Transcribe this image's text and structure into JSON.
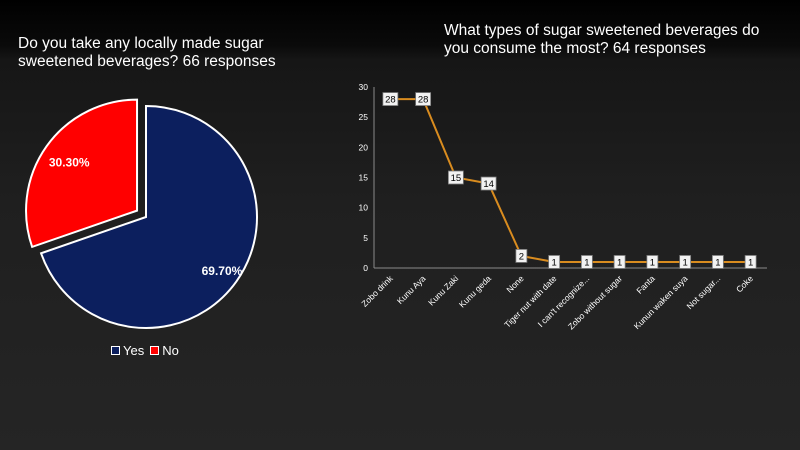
{
  "chart_data": [
    {
      "type": "pie",
      "title": "Do you take any locally made sugar sweetened beverages? 66 responses",
      "categories": [
        "Yes",
        "No"
      ],
      "values": [
        69.7,
        30.3
      ],
      "labels": [
        "69.70%",
        "30.30%"
      ],
      "colors": [
        "#0c1f5e",
        "#ff0000"
      ],
      "legend_position": "bottom"
    },
    {
      "type": "line",
      "title": "What types of sugar sweetened beverages do you consume the most? 64 responses",
      "categories": [
        "Zobo drink",
        "Kunu Aya",
        "Kunu Zaki",
        "Kunu geda",
        "None",
        "Tiger nut with date",
        "I can't recognize...",
        "Zobo without sugar",
        "Fanta",
        "Kunun waken suya",
        "Not sugar...",
        "Coke"
      ],
      "series": [
        {
          "values": [
            28,
            28,
            15,
            14,
            2,
            1,
            1,
            1,
            1,
            1,
            1,
            1
          ]
        }
      ],
      "ylim": [
        0,
        30
      ],
      "yticks": [
        0,
        5,
        10,
        15,
        20,
        25,
        30
      ],
      "line_color": "#d98c1f",
      "data_labels": true,
      "grid": false
    }
  ]
}
